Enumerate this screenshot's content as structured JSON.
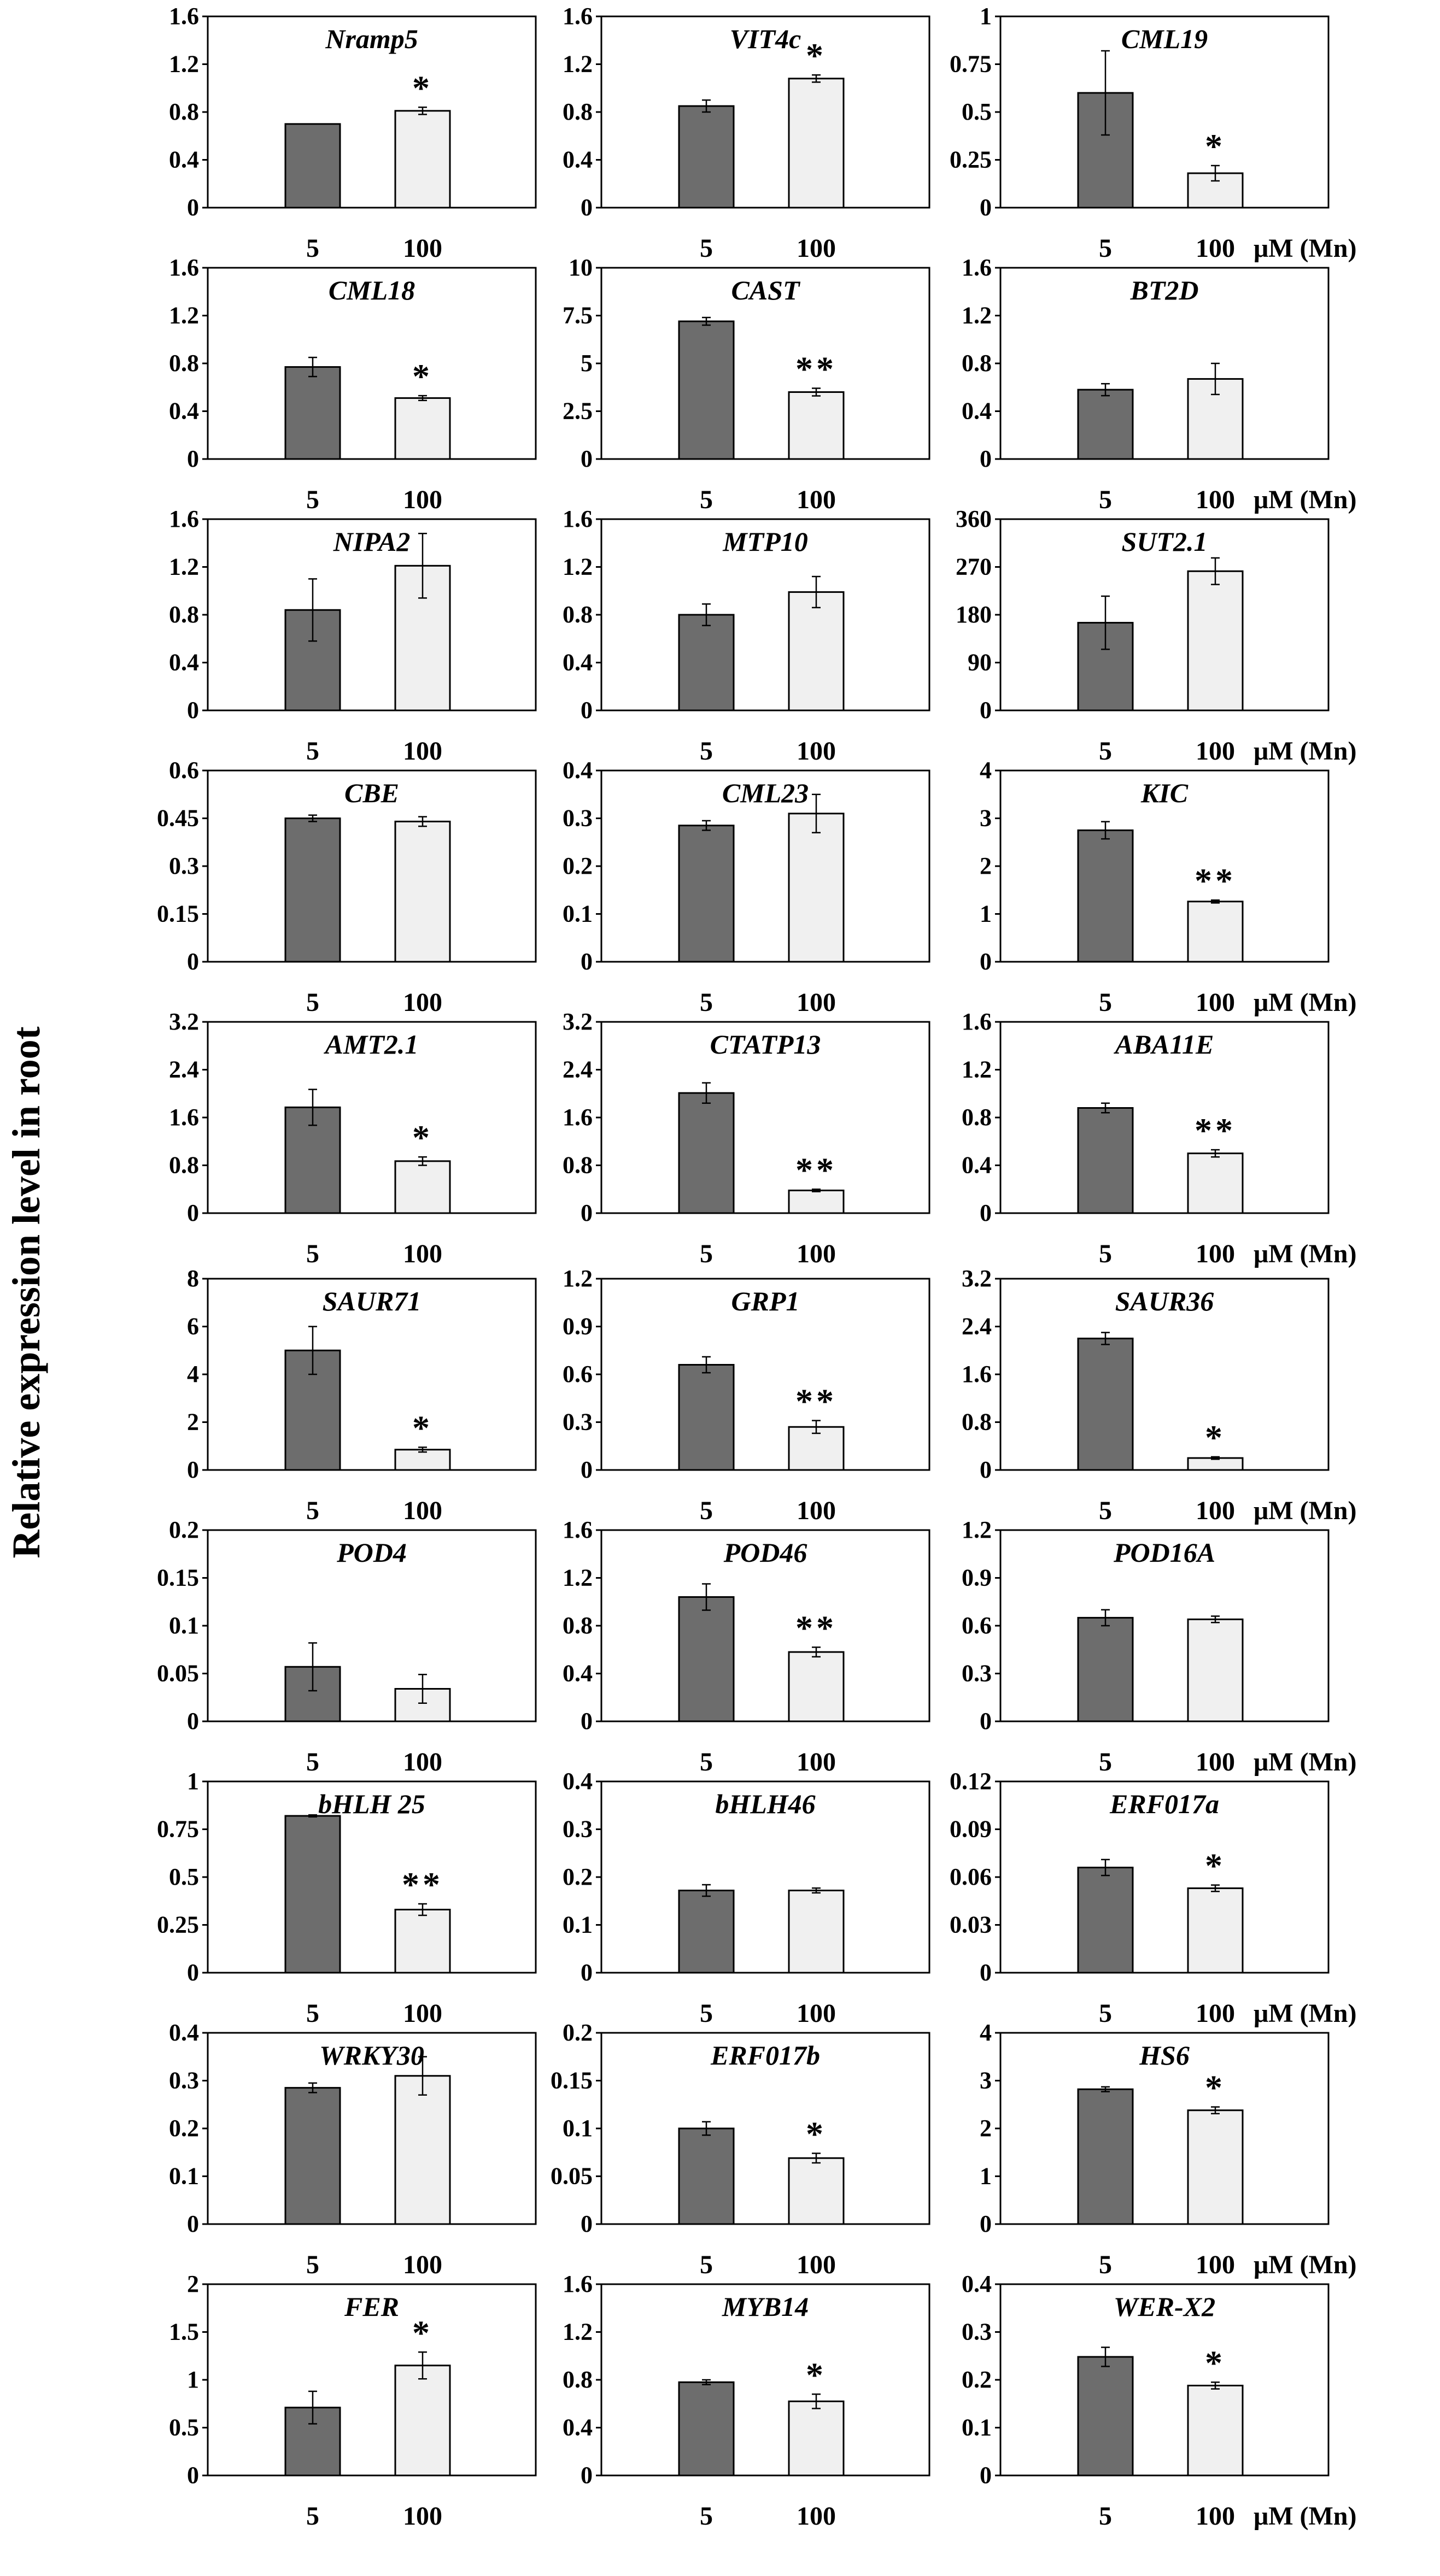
{
  "figure": {
    "ylabel": "Relative expression level in root",
    "unit_label": "μM (Mn)",
    "categories": [
      "5",
      "100"
    ]
  },
  "colors": {
    "bar_5": "#6d6d6d",
    "bar_100": "#f0f0f0",
    "frame": "#000000"
  },
  "chart_data": [
    {
      "type": "bar",
      "title": "Nramp5",
      "categories": [
        "5",
        "100"
      ],
      "values": [
        0.7,
        0.81
      ],
      "errors": [
        0.0,
        0.03
      ],
      "ylim": [
        0,
        1.6
      ],
      "yticks": [
        "0",
        "0.4",
        "0.8",
        "1.2",
        "1.6"
      ],
      "sig": "*"
    },
    {
      "type": "bar",
      "title": "VIT4c",
      "categories": [
        "5",
        "100"
      ],
      "values": [
        0.85,
        1.08
      ],
      "errors": [
        0.05,
        0.03
      ],
      "ylim": [
        0,
        1.6
      ],
      "yticks": [
        "0",
        "0.4",
        "0.8",
        "1.2",
        "1.6"
      ],
      "sig": "*"
    },
    {
      "type": "bar",
      "title": "CML19",
      "categories": [
        "5",
        "100"
      ],
      "values": [
        0.6,
        0.18
      ],
      "errors": [
        0.22,
        0.04
      ],
      "ylim": [
        0,
        1
      ],
      "yticks": [
        "0",
        "0.25",
        "0.5",
        "0.75",
        "1"
      ],
      "sig": "*"
    },
    {
      "type": "bar",
      "title": "CML18",
      "categories": [
        "5",
        "100"
      ],
      "values": [
        0.77,
        0.51
      ],
      "errors": [
        0.08,
        0.02
      ],
      "ylim": [
        0,
        1.6
      ],
      "yticks": [
        "0",
        "0.4",
        "0.8",
        "1.2",
        "1.6"
      ],
      "sig": "*"
    },
    {
      "type": "bar",
      "title": "CAST",
      "categories": [
        "5",
        "100"
      ],
      "values": [
        7.2,
        3.5
      ],
      "errors": [
        0.2,
        0.2
      ],
      "ylim": [
        0,
        10
      ],
      "yticks": [
        "0",
        "2.5",
        "5",
        "7.5",
        "10"
      ],
      "sig": "**"
    },
    {
      "type": "bar",
      "title": "BT2D",
      "categories": [
        "5",
        "100"
      ],
      "values": [
        0.58,
        0.67
      ],
      "errors": [
        0.05,
        0.13
      ],
      "ylim": [
        0,
        1.6
      ],
      "yticks": [
        "0",
        "0.4",
        "0.8",
        "1.2",
        "1.6"
      ],
      "sig": ""
    },
    {
      "type": "bar",
      "title": "NIPA2",
      "categories": [
        "5",
        "100"
      ],
      "values": [
        0.84,
        1.21
      ],
      "errors": [
        0.26,
        0.27
      ],
      "ylim": [
        0,
        1.6
      ],
      "yticks": [
        "0",
        "0.4",
        "0.8",
        "1.2",
        "1.6"
      ],
      "sig": ""
    },
    {
      "type": "bar",
      "title": "MTP10",
      "categories": [
        "5",
        "100"
      ],
      "values": [
        0.8,
        0.99
      ],
      "errors": [
        0.09,
        0.13
      ],
      "ylim": [
        0,
        1.6
      ],
      "yticks": [
        "0",
        "0.4",
        "0.8",
        "1.2",
        "1.6"
      ],
      "sig": ""
    },
    {
      "type": "bar",
      "title": "SUT2.1",
      "categories": [
        "5",
        "100"
      ],
      "values": [
        165,
        262
      ],
      "errors": [
        50,
        25
      ],
      "ylim": [
        0,
        360
      ],
      "yticks": [
        "0",
        "90",
        "180",
        "270",
        "360"
      ],
      "sig": ""
    },
    {
      "type": "bar",
      "title": "CBE",
      "categories": [
        "5",
        "100"
      ],
      "values": [
        0.45,
        0.44
      ],
      "errors": [
        0.01,
        0.015
      ],
      "ylim": [
        0,
        0.6
      ],
      "yticks": [
        "0",
        "0.15",
        "0.3",
        "0.45",
        "0.6"
      ],
      "sig": ""
    },
    {
      "type": "bar",
      "title": "CML23",
      "categories": [
        "5",
        "100"
      ],
      "values": [
        0.285,
        0.31
      ],
      "errors": [
        0.01,
        0.04
      ],
      "ylim": [
        0,
        0.4
      ],
      "yticks": [
        "0",
        "0.1",
        "0.2",
        "0.3",
        "0.4"
      ],
      "sig": ""
    },
    {
      "type": "bar",
      "title": "KIC",
      "categories": [
        "5",
        "100"
      ],
      "values": [
        2.75,
        1.26
      ],
      "errors": [
        0.18,
        0.03
      ],
      "ylim": [
        0,
        4
      ],
      "yticks": [
        "0",
        "1",
        "2",
        "3",
        "4"
      ],
      "sig": "**"
    },
    {
      "type": "bar",
      "title": "AMT2.1",
      "categories": [
        "5",
        "100"
      ],
      "values": [
        1.77,
        0.87
      ],
      "errors": [
        0.3,
        0.07
      ],
      "ylim": [
        0,
        3.2
      ],
      "yticks": [
        "0",
        "0.8",
        "1.6",
        "2.4",
        "3.2"
      ],
      "sig": "*"
    },
    {
      "type": "bar",
      "title": "CTATP13",
      "categories": [
        "5",
        "100"
      ],
      "values": [
        2.01,
        0.38
      ],
      "errors": [
        0.17,
        0.02
      ],
      "ylim": [
        0,
        3.2
      ],
      "yticks": [
        "0",
        "0.8",
        "1.6",
        "2.4",
        "3.2"
      ],
      "sig": "**"
    },
    {
      "type": "bar",
      "title": "ABA11E",
      "categories": [
        "5",
        "100"
      ],
      "values": [
        0.88,
        0.5
      ],
      "errors": [
        0.04,
        0.03
      ],
      "ylim": [
        0,
        1.6
      ],
      "yticks": [
        "0",
        "0.4",
        "0.8",
        "1.2",
        "1.6"
      ],
      "sig": "**"
    },
    {
      "type": "bar",
      "title": "SAUR71",
      "categories": [
        "5",
        "100"
      ],
      "values": [
        5.0,
        0.85
      ],
      "errors": [
        1.0,
        0.1
      ],
      "ylim": [
        0,
        8
      ],
      "yticks": [
        "0",
        "2",
        "4",
        "6",
        "8"
      ],
      "sig": "*"
    },
    {
      "type": "bar",
      "title": "GRP1",
      "categories": [
        "5",
        "100"
      ],
      "values": [
        0.66,
        0.27
      ],
      "errors": [
        0.05,
        0.04
      ],
      "ylim": [
        0,
        1.2
      ],
      "yticks": [
        "0",
        "0.3",
        "0.6",
        "0.9",
        "1.2"
      ],
      "sig": "**"
    },
    {
      "type": "bar",
      "title": "SAUR36",
      "categories": [
        "5",
        "100"
      ],
      "values": [
        2.2,
        0.2
      ],
      "errors": [
        0.1,
        0.02
      ],
      "ylim": [
        0,
        3.2
      ],
      "yticks": [
        "0",
        "0.8",
        "1.6",
        "2.4",
        "3.2"
      ],
      "sig": "*"
    },
    {
      "type": "bar",
      "title": "POD4",
      "categories": [
        "5",
        "100"
      ],
      "values": [
        0.057,
        0.034
      ],
      "errors": [
        0.025,
        0.015
      ],
      "ylim": [
        0,
        0.2
      ],
      "yticks": [
        "0",
        "0.05",
        "0.1",
        "0.15",
        "0.2"
      ],
      "sig": ""
    },
    {
      "type": "bar",
      "title": "POD46",
      "categories": [
        "5",
        "100"
      ],
      "values": [
        1.04,
        0.58
      ],
      "errors": [
        0.11,
        0.04
      ],
      "ylim": [
        0,
        1.6
      ],
      "yticks": [
        "0",
        "0.4",
        "0.8",
        "1.2",
        "1.6"
      ],
      "sig": "**"
    },
    {
      "type": "bar",
      "title": "POD16A",
      "categories": [
        "5",
        "100"
      ],
      "values": [
        0.65,
        0.64
      ],
      "errors": [
        0.05,
        0.02
      ],
      "ylim": [
        0,
        1.2
      ],
      "yticks": [
        "0",
        "0.3",
        "0.6",
        "0.9",
        "1.2"
      ],
      "sig": ""
    },
    {
      "type": "bar",
      "title": "bHLH 25",
      "categories": [
        "5",
        "100"
      ],
      "values": [
        0.82,
        0.33
      ],
      "errors": [
        0.005,
        0.03
      ],
      "ylim": [
        0,
        1
      ],
      "yticks": [
        "0",
        "0.25",
        "0.5",
        "0.75",
        "1"
      ],
      "sig": "**"
    },
    {
      "type": "bar",
      "title": "bHLH46",
      "categories": [
        "5",
        "100"
      ],
      "values": [
        0.172,
        0.172
      ],
      "errors": [
        0.012,
        0.005
      ],
      "ylim": [
        0,
        0.4
      ],
      "yticks": [
        "0",
        "0.1",
        "0.2",
        "0.3",
        "0.4"
      ],
      "sig": ""
    },
    {
      "type": "bar",
      "title": "ERF017a",
      "categories": [
        "5",
        "100"
      ],
      "values": [
        0.066,
        0.053
      ],
      "errors": [
        0.005,
        0.002
      ],
      "ylim": [
        0,
        0.12
      ],
      "yticks": [
        "0",
        "0.03",
        "0.06",
        "0.09",
        "0.12"
      ],
      "sig": "*"
    },
    {
      "type": "bar",
      "title": "WRKY30",
      "categories": [
        "5",
        "100"
      ],
      "values": [
        0.285,
        0.31
      ],
      "errors": [
        0.01,
        0.04
      ],
      "ylim": [
        0,
        0.4
      ],
      "yticks": [
        "0",
        "0.1",
        "0.2",
        "0.3",
        "0.4"
      ],
      "sig": ""
    },
    {
      "type": "bar",
      "title": "ERF017b",
      "categories": [
        "5",
        "100"
      ],
      "values": [
        0.1,
        0.069
      ],
      "errors": [
        0.007,
        0.005
      ],
      "ylim": [
        0,
        0.2
      ],
      "yticks": [
        "0",
        "0.05",
        "0.1",
        "0.15",
        "0.2"
      ],
      "sig": "*"
    },
    {
      "type": "bar",
      "title": "HS6",
      "categories": [
        "5",
        "100"
      ],
      "values": [
        2.82,
        2.38
      ],
      "errors": [
        0.05,
        0.07
      ],
      "ylim": [
        0,
        4
      ],
      "yticks": [
        "0",
        "1",
        "2",
        "3",
        "4"
      ],
      "sig": "*"
    },
    {
      "type": "bar",
      "title": "FER",
      "categories": [
        "5",
        "100"
      ],
      "values": [
        0.71,
        1.15
      ],
      "errors": [
        0.17,
        0.14
      ],
      "ylim": [
        0,
        2
      ],
      "yticks": [
        "0",
        "0.5",
        "1",
        "1.5",
        "2"
      ],
      "sig": "*"
    },
    {
      "type": "bar",
      "title": "MYB14",
      "categories": [
        "5",
        "100"
      ],
      "values": [
        0.78,
        0.62
      ],
      "errors": [
        0.02,
        0.06
      ],
      "ylim": [
        0,
        1.6
      ],
      "yticks": [
        "0",
        "0.4",
        "0.8",
        "1.2",
        "1.6"
      ],
      "sig": "*"
    },
    {
      "type": "bar",
      "title": "WER-X2",
      "categories": [
        "5",
        "100"
      ],
      "values": [
        0.248,
        0.188
      ],
      "errors": [
        0.02,
        0.007
      ],
      "ylim": [
        0,
        0.4
      ],
      "yticks": [
        "0",
        "0.1",
        "0.2",
        "0.3",
        "0.4"
      ],
      "sig": "*"
    }
  ]
}
